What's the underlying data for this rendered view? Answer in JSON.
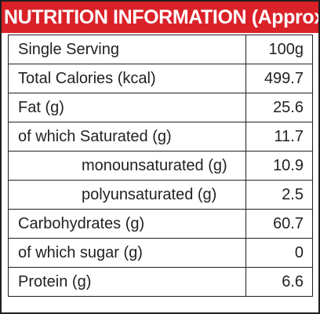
{
  "title": "NUTRITION INFORMATION (Approx)",
  "colors": {
    "header_bg": "#da2128",
    "header_text": "#ffffff",
    "border": "#231f20",
    "text": "#231f20"
  },
  "rows": [
    {
      "label": "Single Serving",
      "value": "100g",
      "indent": false
    },
    {
      "label": "Total Calories (kcal)",
      "value": "499.7",
      "indent": false
    },
    {
      "label": "Fat (g)",
      "value": "25.6",
      "indent": false
    },
    {
      "label": "of which Saturated (g)",
      "value": "11.7",
      "indent": false
    },
    {
      "label": "monounsaturated (g)",
      "value": "10.9",
      "indent": true
    },
    {
      "label": "polyunsaturated (g)",
      "value": "2.5",
      "indent": true
    },
    {
      "label": "Carbohydrates (g)",
      "value": "60.7",
      "indent": false
    },
    {
      "label": "of which sugar (g)",
      "value": "0",
      "indent": false
    },
    {
      "label": "Protein (g)",
      "value": "6.6",
      "indent": false
    }
  ]
}
